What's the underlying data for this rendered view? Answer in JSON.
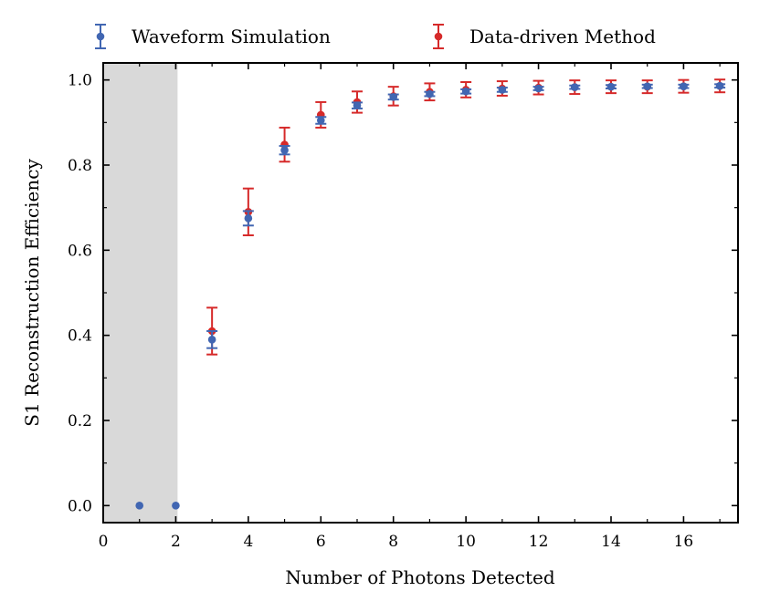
{
  "chart_data": {
    "type": "scatter",
    "title": "",
    "xlabel": "Number of Photons Detected",
    "ylabel": "S1 Reconstruction Efficiency",
    "xlim": [
      0,
      17.5
    ],
    "ylim": [
      -0.04,
      1.04
    ],
    "xticks": [
      0,
      2,
      4,
      6,
      8,
      10,
      12,
      14,
      16
    ],
    "xtick_labels": [
      "0",
      "2",
      "4",
      "6",
      "8",
      "10",
      "12",
      "14",
      "16"
    ],
    "yticks": [
      0.0,
      0.2,
      0.4,
      0.6,
      0.8,
      1.0
    ],
    "ytick_labels": [
      "0.0",
      "0.2",
      "0.4",
      "0.6",
      "0.8",
      "1.0"
    ],
    "grid": false,
    "legend_position": "above-top",
    "shaded_region": {
      "x": [
        0,
        2.05
      ],
      "color": "#d9d9d9"
    },
    "series": [
      {
        "name": "Waveform Simulation",
        "color": "#4166b2",
        "x": [
          1,
          2,
          3,
          4,
          5,
          6,
          7,
          8,
          9,
          10,
          11,
          12,
          13,
          14,
          15,
          16,
          17
        ],
        "y": [
          0.0,
          0.0,
          0.39,
          0.675,
          0.835,
          0.905,
          0.94,
          0.96,
          0.967,
          0.973,
          0.977,
          0.98,
          0.983,
          0.984,
          0.985,
          0.985,
          0.986
        ],
        "err": [
          0.0,
          0.0,
          0.02,
          0.017,
          0.01,
          0.008,
          0.007,
          0.006,
          0.005,
          0.005,
          0.005,
          0.004,
          0.004,
          0.004,
          0.004,
          0.004,
          0.004
        ]
      },
      {
        "name": "Data-driven Method",
        "color": "#d62a2a",
        "x": [
          3,
          4,
          5,
          6,
          7,
          8,
          9,
          10,
          11,
          12,
          13,
          14,
          15,
          16,
          17
        ],
        "y": [
          0.41,
          0.69,
          0.848,
          0.918,
          0.948,
          0.962,
          0.972,
          0.977,
          0.98,
          0.982,
          0.983,
          0.984,
          0.984,
          0.985,
          0.986
        ],
        "err": [
          0.055,
          0.055,
          0.04,
          0.03,
          0.025,
          0.022,
          0.02,
          0.018,
          0.017,
          0.016,
          0.016,
          0.015,
          0.015,
          0.015,
          0.015
        ]
      }
    ]
  }
}
